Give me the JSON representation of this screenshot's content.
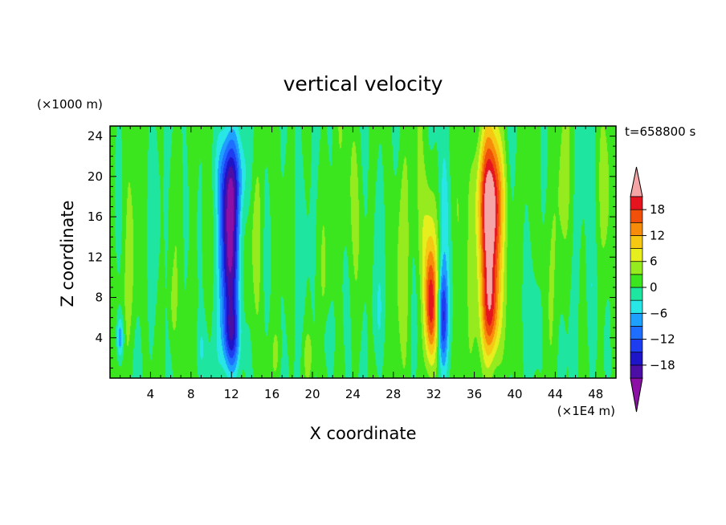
{
  "chart_data": {
    "type": "heatmap",
    "title": "vertical velocity",
    "xlabel": "X coordinate",
    "ylabel": "Z coordinate",
    "x_unit": "(×1E4 m)",
    "y_unit": "(×1000 m)",
    "time_label": "t=658800 s",
    "xlim": [
      0,
      50
    ],
    "ylim": [
      0,
      25
    ],
    "xticks": [
      4,
      8,
      12,
      16,
      20,
      24,
      28,
      32,
      36,
      40,
      44,
      48
    ],
    "yticks": [
      4,
      8,
      12,
      16,
      20,
      24
    ],
    "colorbar": {
      "levels": [
        -21,
        -18,
        -15,
        -12,
        -9,
        -6,
        -3,
        0,
        3,
        6,
        9,
        12,
        15,
        18,
        21
      ],
      "tick_values": [
        -18,
        -12,
        -6,
        0,
        6,
        12,
        18
      ],
      "tick_labels": [
        "−18",
        "−12",
        "−6",
        "0",
        "6",
        "12",
        "18"
      ],
      "colors": [
        "#8c0fa6",
        "#4b0fa6",
        "#1e14c8",
        "#1e3cf0",
        "#1e6eff",
        "#1ea0ff",
        "#28e6e6",
        "#1ee6a0",
        "#3ce61e",
        "#96eb1e",
        "#e6ee1e",
        "#f5c814",
        "#f78c0a",
        "#f0500a",
        "#e6141e",
        "#f5a5a5"
      ],
      "extend": "both"
    },
    "features": [
      {
        "x": 11.8,
        "z": 13.0,
        "sx": 0.65,
        "sz": 6.0,
        "w": -21
      },
      {
        "x": 12.0,
        "z": 20.0,
        "sx": 1.0,
        "sz": 3.0,
        "w": -9
      },
      {
        "x": 12.0,
        "z": 4.0,
        "sx": 0.6,
        "sz": 2.5,
        "w": -12
      },
      {
        "x": 37.6,
        "z": 13.0,
        "sx": 0.75,
        "sz": 6.5,
        "w": 21
      },
      {
        "x": 37.6,
        "z": 19.0,
        "sx": 1.1,
        "sz": 4.0,
        "w": 9
      },
      {
        "x": 37.6,
        "z": 6.0,
        "sx": 0.6,
        "sz": 3.0,
        "w": 9
      },
      {
        "x": 31.7,
        "z": 7.0,
        "sx": 0.45,
        "sz": 4.0,
        "w": 18
      },
      {
        "x": 31.4,
        "z": 14.0,
        "sx": 0.7,
        "sz": 5.0,
        "w": 6
      },
      {
        "x": 32.9,
        "z": 6.0,
        "sx": 0.35,
        "sz": 3.5,
        "w": -15
      },
      {
        "x": 33.0,
        "z": 16.0,
        "sx": 0.4,
        "sz": 5.0,
        "w": -4
      },
      {
        "x": 1.0,
        "z": 4.0,
        "sx": 0.25,
        "sz": 1.5,
        "w": -9
      },
      {
        "x": 2.0,
        "z": 9.0,
        "sx": 0.5,
        "sz": 6.0,
        "w": 3
      },
      {
        "x": 6.2,
        "z": 7.0,
        "sx": 0.3,
        "sz": 3.0,
        "w": 3
      },
      {
        "x": 9.0,
        "z": 3.0,
        "sx": 0.4,
        "sz": 2.0,
        "w": -3
      },
      {
        "x": 14.5,
        "z": 14.0,
        "sx": 0.4,
        "sz": 5.0,
        "w": 3
      },
      {
        "x": 16.5,
        "z": 2.5,
        "sx": 0.35,
        "sz": 2.0,
        "w": 3
      },
      {
        "x": 19.6,
        "z": 2.5,
        "sx": 0.3,
        "sz": 1.5,
        "w": 4
      },
      {
        "x": 21.5,
        "z": 4.0,
        "sx": 0.4,
        "sz": 2.0,
        "w": -3
      },
      {
        "x": 24.0,
        "z": 18.0,
        "sx": 0.6,
        "sz": 6.0,
        "w": 3
      },
      {
        "x": 26.5,
        "z": 6.0,
        "sx": 0.4,
        "sz": 3.0,
        "w": -2
      },
      {
        "x": 29.0,
        "z": 12.0,
        "sx": 0.5,
        "sz": 8.0,
        "w": 3
      },
      {
        "x": 34.5,
        "z": 14.0,
        "sx": 0.35,
        "sz": 6.0,
        "w": 3
      },
      {
        "x": 42.0,
        "z": 5.0,
        "sx": 0.5,
        "sz": 4.0,
        "w": -3
      },
      {
        "x": 44.5,
        "z": 16.0,
        "sx": 0.6,
        "sz": 8.0,
        "w": 3
      },
      {
        "x": 47.5,
        "z": 8.0,
        "sx": 0.4,
        "sz": 5.0,
        "w": -3
      },
      {
        "x": 49.0,
        "z": 18.0,
        "sx": 0.4,
        "sz": 6.0,
        "w": 3
      }
    ],
    "background": {
      "amplitude": 1.6,
      "base": 0.5
    },
    "grid": false,
    "legend": "right"
  }
}
